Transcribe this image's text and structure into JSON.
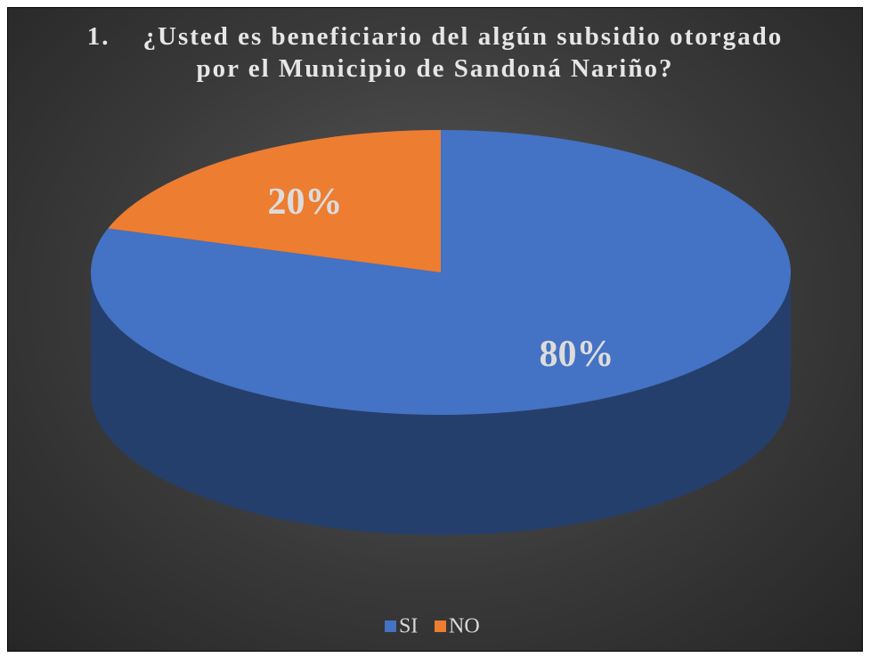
{
  "chart_data": {
    "type": "pie",
    "title": "1.    ¿Usted es beneficiario del algún subsidio otorgado por el Municipio de Sandoná Nariño?",
    "categories": [
      "SI",
      "NO"
    ],
    "values": [
      80,
      20
    ],
    "value_labels": [
      "80%",
      "20%"
    ],
    "colors": [
      "#4472c4",
      "#ed7d31"
    ],
    "legend": "bottom"
  }
}
